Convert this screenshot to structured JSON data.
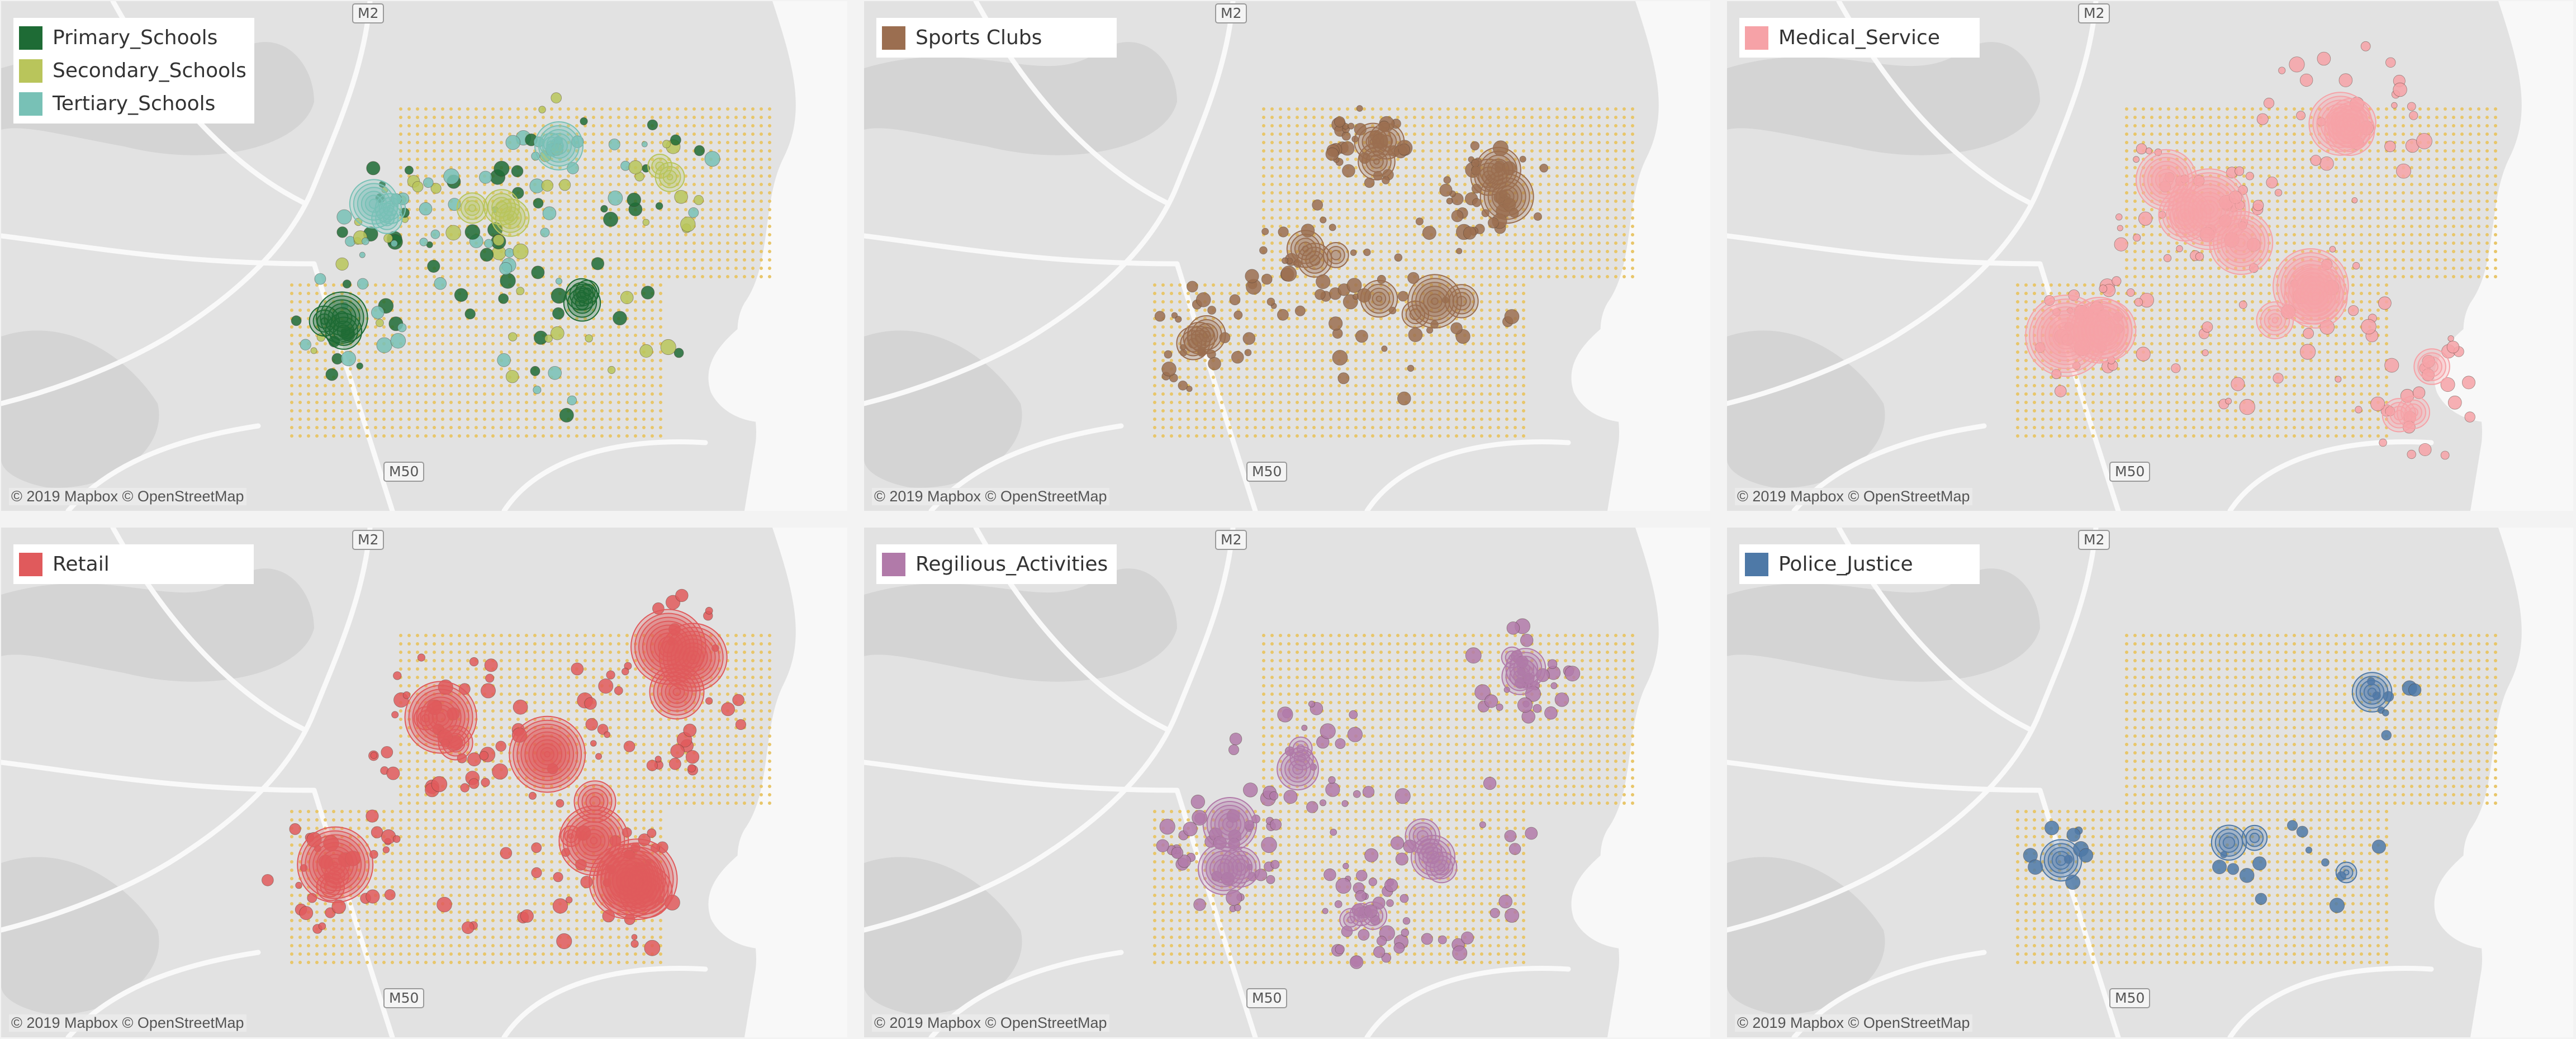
{
  "map": {
    "attribution": "© 2019 Mapbox © OpenStreetMap",
    "road_labels": [
      "M2",
      "M50"
    ],
    "colors": {
      "background": "#e2e2e2",
      "water": "#f8f8f8",
      "land_dark": "#d4d4d4",
      "roads": "#f9f9f9",
      "grid_dots": "#e8c66a"
    }
  },
  "panels": [
    {
      "legend": [
        {
          "label": "Primary_Schools",
          "color": "#1e6b35"
        },
        {
          "label": "Secondary_Schools",
          "color": "#b9c55b"
        },
        {
          "label": "Tertiary_Schools",
          "color": "#78c1b6"
        }
      ]
    },
    {
      "legend": [
        {
          "label": "Sports Clubs",
          "color": "#9b6e50"
        }
      ]
    },
    {
      "legend": [
        {
          "label": "Medical_Service",
          "color": "#f6a2a7"
        }
      ]
    },
    {
      "legend": [
        {
          "label": "Retail",
          "color": "#e05a5c"
        }
      ]
    },
    {
      "legend": [
        {
          "label": "Regilious_Activities",
          "color": "#b17aa9"
        }
      ]
    },
    {
      "legend": [
        {
          "label": "Police_Justice",
          "color": "#4e79a7"
        }
      ]
    }
  ]
}
